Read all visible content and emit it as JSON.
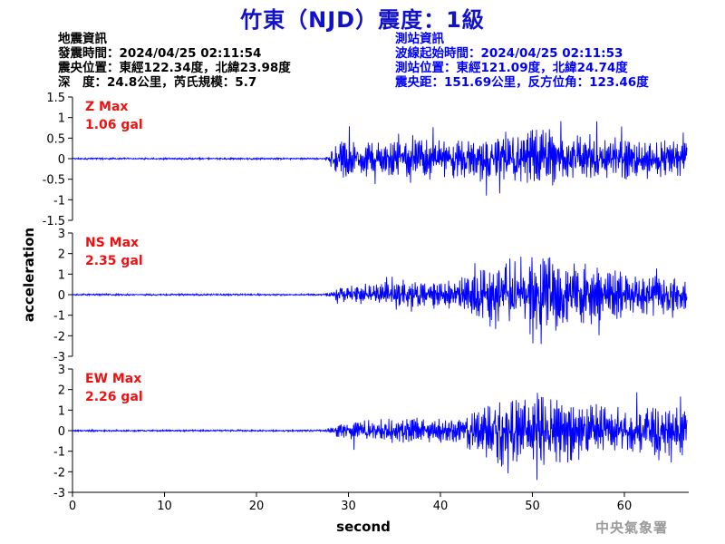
{
  "title": "竹東（NJD）震度：1級",
  "earthquake_info": {
    "heading": "地震資訊",
    "origin_time": "發震時間：2024/04/25 02:11:54",
    "epicenter": "震央位置：東經122.34度，北緯23.98度",
    "depth_magnitude": "深　度：24.8公里，芮氏規模：5.7"
  },
  "station_info": {
    "heading": "測站資訊",
    "wave_start": "波線起始時間：2024/04/25 02:11:53",
    "location": "測站位置：東經121.09度，北緯24.74度",
    "distance": "震央距：151.69公里，反方位角：123.46度"
  },
  "footer": "中央氣象署",
  "colors": {
    "trace": "#0000ff",
    "max_label": "#ee1111",
    "title": "#1111cc",
    "station_text": "#0000ff"
  },
  "chart_data": {
    "type": "line",
    "xlabel": "second",
    "ylabel": "acceleration",
    "xlim": [
      0,
      67
    ],
    "xticks": [
      0,
      10,
      20,
      30,
      40,
      50,
      60
    ],
    "onset_second": 27.5,
    "panels": [
      {
        "component": "Z",
        "max_label": "Z Max",
        "max_value": "1.06 gal",
        "ylim": [
          -1.5,
          1.5
        ],
        "yticks": [
          1.5,
          1,
          0.5,
          0,
          -0.5,
          -1,
          -1.5
        ],
        "noise_amplitude": 0.02,
        "envelope": [
          [
            0,
            0.02
          ],
          [
            27.5,
            0.03
          ],
          [
            28.5,
            0.45
          ],
          [
            35,
            0.4
          ],
          [
            45,
            0.55
          ],
          [
            50,
            0.7
          ],
          [
            55,
            0.55
          ],
          [
            62,
            0.45
          ],
          [
            66.8,
            0.4
          ]
        ]
      },
      {
        "component": "NS",
        "max_label": "NS Max",
        "max_value": "2.35 gal",
        "ylim": [
          -3,
          3
        ],
        "yticks": [
          3,
          2,
          1,
          0,
          -1,
          -2,
          -3
        ],
        "noise_amplitude": 0.04,
        "envelope": [
          [
            0,
            0.04
          ],
          [
            27.5,
            0.05
          ],
          [
            29,
            0.35
          ],
          [
            35,
            0.5
          ],
          [
            42,
            0.7
          ],
          [
            46,
            1.5
          ],
          [
            50,
            1.8
          ],
          [
            55,
            1.4
          ],
          [
            60,
            1.0
          ],
          [
            66.8,
            0.8
          ]
        ]
      },
      {
        "component": "EW",
        "max_label": "EW Max",
        "max_value": "2.26 gal",
        "ylim": [
          -3,
          3
        ],
        "yticks": [
          3,
          2,
          1,
          0,
          -1,
          -2,
          -3
        ],
        "noise_amplitude": 0.04,
        "envelope": [
          [
            0,
            0.04
          ],
          [
            27.5,
            0.05
          ],
          [
            29,
            0.4
          ],
          [
            35,
            0.55
          ],
          [
            42,
            0.6
          ],
          [
            46,
            1.5
          ],
          [
            50,
            1.7
          ],
          [
            55,
            1.3
          ],
          [
            60,
            1.0
          ],
          [
            66.8,
            1.1
          ]
        ]
      }
    ]
  }
}
